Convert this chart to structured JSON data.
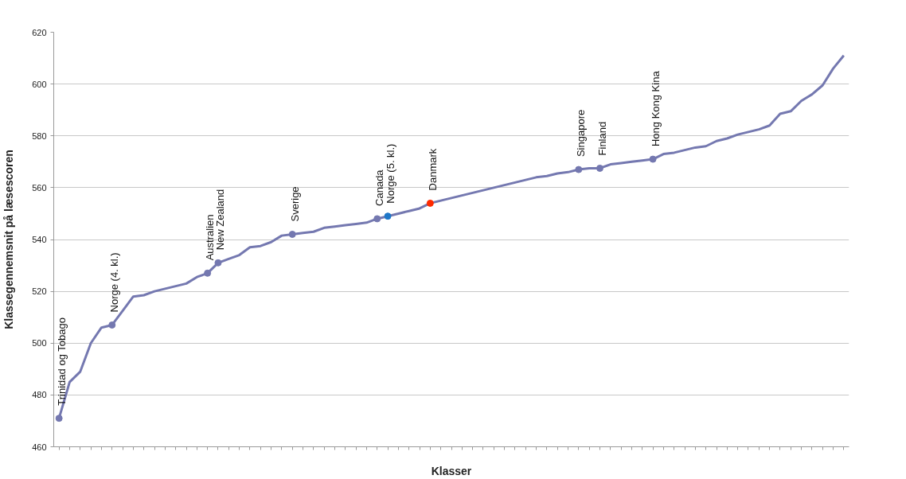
{
  "chart_data": {
    "type": "line",
    "xlabel": "Klasser",
    "ylabel": "Klassegennemsnit på læsescoren",
    "categories": [
      null,
      null,
      null,
      null,
      null,
      null,
      null,
      null,
      null,
      null,
      null,
      null,
      null,
      null,
      null,
      null,
      null,
      null,
      null,
      null,
      null,
      null,
      null,
      null,
      null,
      null,
      null,
      null,
      null,
      null,
      null,
      null,
      null,
      null,
      null,
      null,
      null,
      null,
      null,
      null,
      null,
      null,
      null,
      null,
      null,
      null,
      null,
      null,
      null,
      null,
      null,
      null,
      null,
      null,
      null,
      null,
      null,
      null,
      null,
      null,
      null,
      null,
      null,
      null,
      null,
      null,
      null,
      null,
      null,
      null,
      null,
      null,
      null,
      null,
      null
    ],
    "series": [
      {
        "color": "#7478b0",
        "marker": "none",
        "values": [
          471,
          485,
          489,
          500,
          506,
          507,
          512.5,
          518,
          518.5,
          520,
          521,
          522,
          523,
          525.5,
          527,
          531,
          532.5,
          534,
          537,
          537.5,
          539,
          541.5,
          542,
          542.5,
          543,
          544.5,
          545,
          545.5,
          546,
          546.5,
          548,
          549,
          550,
          551,
          552,
          554,
          555,
          556,
          557,
          558,
          559,
          560,
          561,
          562,
          563,
          564,
          564.5,
          565.5,
          566,
          567,
          567.5,
          567.5,
          569,
          569.5,
          570,
          570.5,
          571,
          573,
          573.5,
          574.5,
          575.5,
          576,
          578,
          579,
          580.5,
          581.5,
          582.5,
          584,
          588.5,
          589.5,
          593.5,
          596,
          599.5,
          606,
          611
        ]
      },
      {
        "type": "scatter",
        "marker": "circle",
        "color": "#7478b0",
        "colors": [
          null,
          null,
          null,
          null,
          null,
          null,
          null,
          null,
          null,
          null,
          null,
          null,
          null,
          null,
          null,
          null,
          null,
          null,
          null,
          null,
          null,
          null,
          null,
          null,
          null,
          null,
          null,
          null,
          null,
          null,
          null,
          "#1f77c8",
          null,
          null,
          null,
          "#ff2a00",
          null,
          null,
          null,
          null,
          null,
          null,
          null,
          null,
          null,
          null,
          null,
          null,
          null,
          null,
          null,
          null,
          null,
          null,
          null,
          null,
          null,
          null,
          null,
          null,
          null,
          null,
          null,
          null,
          null,
          null,
          null,
          null,
          null,
          null,
          null,
          null,
          null,
          null,
          null
        ],
        "values": [
          471,
          null,
          null,
          null,
          null,
          507,
          null,
          null,
          null,
          null,
          null,
          null,
          null,
          null,
          527,
          531,
          null,
          null,
          null,
          null,
          null,
          null,
          542,
          null,
          null,
          null,
          null,
          null,
          null,
          null,
          548,
          549,
          null,
          null,
          null,
          554,
          null,
          null,
          null,
          null,
          null,
          null,
          null,
          null,
          null,
          null,
          null,
          null,
          null,
          567,
          null,
          567.5,
          null,
          null,
          null,
          null,
          571,
          null,
          null,
          null,
          null,
          null,
          null,
          null,
          null,
          null,
          null,
          null,
          null,
          null,
          null,
          null,
          null,
          null,
          null
        ]
      }
    ],
    "annotations": [
      "Trinidad og Tobago",
      "Norge (4. kl.)",
      "Australien",
      "New Zealand",
      "Sverige",
      "Canada",
      "Norge (5. kl.)",
      "Danmark",
      "Singapore",
      "Finland",
      "Hong Kong Kina"
    ],
    "ylim": [
      460,
      620
    ],
    "yticks": [
      460,
      480,
      500,
      520,
      540,
      560,
      580,
      600,
      620
    ],
    "grid": "y",
    "tick_labels": "y",
    "line_style": "solid"
  }
}
